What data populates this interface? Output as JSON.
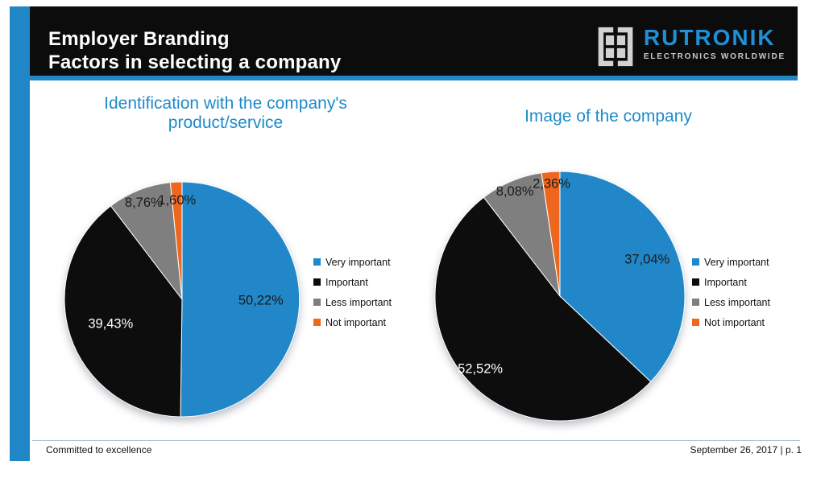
{
  "accent_color": "#1f87c6",
  "header": {
    "title_line1": "Employer Branding",
    "title_line2": "Factors in selecting a company"
  },
  "logo": {
    "wordmark": "RUTRONIK",
    "tagline": "ELECTRONICS WORLDWIDE",
    "wordmark_color": "#1f8fd6",
    "tagline_color": "#c8c8c8"
  },
  "legend": {
    "items": [
      {
        "label": "Very important",
        "color": "#2187c8"
      },
      {
        "label": "Important",
        "color": "#0d0d0d"
      },
      {
        "label": "Less important",
        "color": "#7f7f7f"
      },
      {
        "label": "Not important",
        "color": "#ef671f"
      }
    ]
  },
  "chart_data": [
    {
      "type": "pie",
      "title": "Identification with the company's product/service",
      "title_lines": [
        "Identification with the company's",
        "product/service"
      ],
      "categories": [
        "Very important",
        "Important",
        "Less important",
        "Not important"
      ],
      "values": [
        50.22,
        39.43,
        8.76,
        1.6
      ],
      "labels": [
        "50,22%",
        "39,43%",
        "8,76%",
        "1,60%"
      ],
      "colors": [
        "#2187c8",
        "#0d0d0d",
        "#7f7f7f",
        "#ef671f"
      ],
      "label_colors": [
        "#1a1a1a",
        "#ffffff",
        "#1a1a1a",
        "#1a1a1a"
      ],
      "label_factors": [
        0.67,
        0.64,
        0.89,
        0.85
      ],
      "start_angle": 0,
      "direction": "clockwise",
      "legend_position": "right"
    },
    {
      "type": "pie",
      "title": "Image of the company",
      "title_lines": [
        "Image of the company"
      ],
      "categories": [
        "Very important",
        "Important",
        "Less important",
        "Not important"
      ],
      "values": [
        37.04,
        52.52,
        8.08,
        2.36
      ],
      "labels": [
        "37,04%",
        "52,52%",
        "8,08%",
        "2,36%"
      ],
      "colors": [
        "#2187c8",
        "#0d0d0d",
        "#7f7f7f",
        "#ef671f"
      ],
      "label_colors": [
        "#1a1a1a",
        "#ffffff",
        "#1a1a1a",
        "#1a1a1a"
      ],
      "label_factors": [
        0.76,
        0.86,
        0.92,
        0.91
      ],
      "start_angle": 0,
      "direction": "clockwise",
      "legend_position": "right"
    }
  ],
  "footer": {
    "left": "Committed to excellence",
    "right": "September 26, 2017 | p. 1"
  }
}
